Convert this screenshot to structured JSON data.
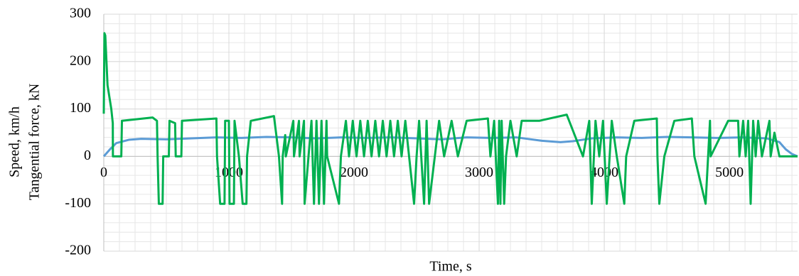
{
  "chart_data": {
    "type": "line",
    "y_label_lines": [
      "Speed, km/h",
      "Tangential force, kN"
    ],
    "x_label": "Time, s",
    "xlim": [
      0,
      5545
    ],
    "xticks": [
      0,
      1000,
      2000,
      3000,
      4000,
      5000
    ],
    "ylim": [
      -200,
      300
    ],
    "yticks": [
      -200,
      -100,
      0,
      100,
      200,
      300
    ],
    "grid": true,
    "series": [
      {
        "color": "#5b9bd5",
        "x": [
          0,
          50,
          100,
          200,
          300,
          500,
          700,
          900,
          1100,
          1300,
          1500,
          1700,
          1900,
          2100,
          2300,
          2500,
          2700,
          2900,
          3100,
          3300,
          3500,
          3650,
          3750,
          3900,
          4100,
          4300,
          4500,
          4700,
          4900,
          5100,
          5300,
          5400,
          5450,
          5500,
          5545
        ],
        "values": [
          0,
          15,
          28,
          35,
          37,
          36,
          38,
          40,
          39,
          41,
          40,
          38,
          40,
          39,
          40,
          38,
          36,
          40,
          39,
          40,
          33,
          30,
          32,
          38,
          40,
          39,
          41,
          40,
          39,
          40,
          38,
          30,
          15,
          5,
          0
        ]
      },
      {
        "color": "#00b050",
        "x": [
          0,
          5,
          12,
          30,
          60,
          72,
          73,
          140,
          145,
          390,
          425,
          430,
          440,
          470,
          475,
          520,
          525,
          570,
          575,
          620,
          625,
          900,
          905,
          930,
          965,
          970,
          1000,
          1005,
          1040,
          1045,
          1080,
          1110,
          1140,
          1145,
          1175,
          1360,
          1400,
          1425,
          1430,
          1450,
          1455,
          1515,
          1520,
          1560,
          1565,
          1600,
          1605,
          1660,
          1680,
          1700,
          1720,
          1740,
          1760,
          1780,
          1785,
          1880,
          1895,
          1935,
          1960,
          1990,
          2020,
          2050,
          2080,
          2110,
          2140,
          2170,
          2200,
          2230,
          2260,
          2290,
          2320,
          2350,
          2380,
          2410,
          2440,
          2480,
          2500,
          2520,
          2560,
          2580,
          2600,
          2680,
          2720,
          2780,
          2830,
          2900,
          3070,
          3090,
          3120,
          3150,
          3160,
          3170,
          3180,
          3200,
          3215,
          3250,
          3300,
          3340,
          3480,
          3700,
          3830,
          3880,
          3900,
          3930,
          3960,
          3990,
          4020,
          4060,
          4100,
          4160,
          4175,
          4240,
          4420,
          4425,
          4440,
          4480,
          4560,
          4700,
          4720,
          4810,
          4845,
          4850,
          4990,
          5070,
          5080,
          5110,
          5130,
          5150,
          5170,
          5190,
          5210,
          5230,
          5260,
          5320,
          5330,
          5360,
          5400,
          5545
        ],
        "values": [
          90,
          260,
          255,
          150,
          100,
          70,
          0,
          0,
          75,
          82,
          75,
          0,
          -100,
          -100,
          0,
          0,
          75,
          70,
          0,
          0,
          75,
          80,
          0,
          -100,
          -100,
          75,
          75,
          -100,
          -100,
          75,
          0,
          -100,
          -100,
          0,
          75,
          85,
          0,
          -100,
          0,
          45,
          0,
          75,
          0,
          75,
          0,
          75,
          -100,
          75,
          -100,
          75,
          -100,
          75,
          -100,
          75,
          0,
          -100,
          0,
          75,
          0,
          75,
          0,
          75,
          0,
          75,
          0,
          75,
          0,
          75,
          0,
          75,
          0,
          75,
          0,
          75,
          0,
          -100,
          0,
          75,
          -100,
          75,
          -100,
          75,
          0,
          75,
          0,
          75,
          80,
          0,
          75,
          -100,
          75,
          -100,
          75,
          -100,
          0,
          75,
          0,
          75,
          75,
          88,
          0,
          75,
          -100,
          75,
          0,
          75,
          -100,
          75,
          0,
          -100,
          0,
          75,
          80,
          0,
          -100,
          0,
          75,
          80,
          0,
          -100,
          75,
          0,
          75,
          75,
          0,
          75,
          0,
          75,
          -100,
          75,
          0,
          75,
          0,
          75,
          0,
          50,
          0,
          0
        ]
      }
    ]
  }
}
